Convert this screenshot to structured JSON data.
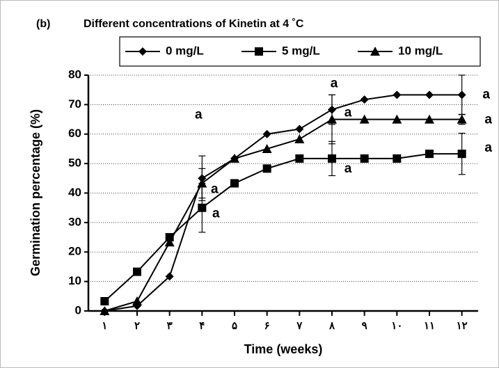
{
  "chart_data": {
    "type": "line",
    "panel_label": "(b)",
    "title": "Different concentrations of Kinetin at 4 ˚C",
    "x_label": "Time (weeks)",
    "y_label": "Germination percentage (%)",
    "x": [
      1,
      2,
      3,
      4,
      5,
      6,
      7,
      8,
      9,
      10,
      11,
      12
    ],
    "xlim": [
      0.5,
      12.5
    ],
    "xticks": [
      {
        "value": 1,
        "label": "١"
      },
      {
        "value": 2,
        "label": "٢"
      },
      {
        "value": 3,
        "label": "٣"
      },
      {
        "value": 4,
        "label": "۴"
      },
      {
        "value": 5,
        "label": "۵"
      },
      {
        "value": 6,
        "label": "۶"
      },
      {
        "value": 7,
        "label": "٧"
      },
      {
        "value": 8,
        "label": "٨"
      },
      {
        "value": 9,
        "label": "٩"
      },
      {
        "value": 10,
        "label": "١٠"
      },
      {
        "value": 11,
        "label": "١١"
      },
      {
        "value": 12,
        "label": "١٢"
      }
    ],
    "ylim": [
      0,
      80
    ],
    "yticks": [
      0,
      10,
      20,
      30,
      40,
      50,
      60,
      70,
      80
    ],
    "grid": true,
    "legend": "top",
    "series": [
      {
        "name": "0 mg/L",
        "color": "#000000",
        "marker": "diamond",
        "values": [
          0,
          1.7,
          11.7,
          45,
          51.7,
          60,
          61.7,
          68.3,
          71.7,
          73.3,
          73.3,
          73.3
        ],
        "errors": [
          null,
          null,
          null,
          7.6,
          null,
          null,
          null,
          5,
          null,
          null,
          null,
          6.7
        ],
        "error_labels": [
          null,
          null,
          null,
          "a",
          null,
          null,
          null,
          "a",
          null,
          null,
          null,
          "a"
        ]
      },
      {
        "name": "5 mg/L",
        "color": "#000000",
        "marker": "square",
        "values": [
          3.3,
          13.3,
          25,
          35,
          43.3,
          48.3,
          51.7,
          51.7,
          51.7,
          51.7,
          53.3,
          53.3
        ],
        "errors": [
          null,
          null,
          null,
          8.3,
          null,
          null,
          null,
          5.8,
          null,
          null,
          null,
          7
        ],
        "error_labels": [
          null,
          null,
          null,
          "a",
          null,
          null,
          null,
          "a",
          null,
          null,
          null,
          "a"
        ]
      },
      {
        "name": "10 mg/L",
        "color": "#000000",
        "marker": "triangle",
        "values": [
          0,
          3.3,
          23.3,
          43.3,
          51.7,
          55,
          58.3,
          65,
          65,
          65,
          65,
          65
        ],
        "errors": [
          null,
          null,
          null,
          5,
          null,
          null,
          null,
          8.3,
          null,
          null,
          null,
          1.7
        ],
        "error_labels": [
          null,
          null,
          null,
          "a",
          null,
          null,
          null,
          "a",
          null,
          null,
          null,
          "a"
        ]
      }
    ]
  }
}
